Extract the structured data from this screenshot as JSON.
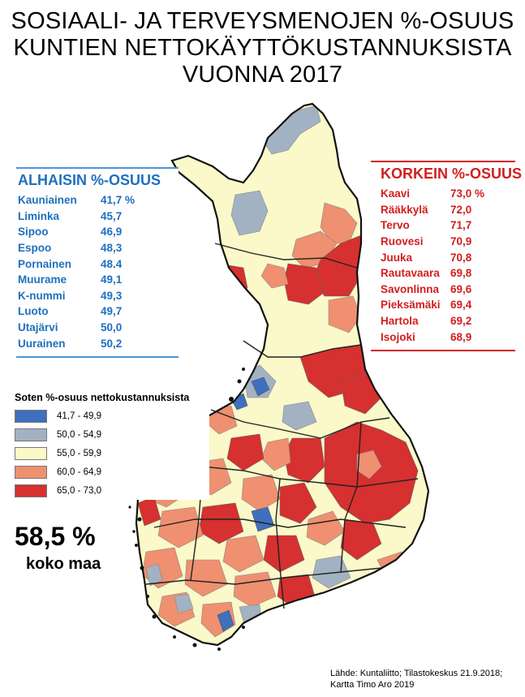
{
  "title": {
    "line1": "SOSIAALI- JA TERVEYSMENOJEN %-OSUUS",
    "line2": "KUNTIEN NETTOKÄYTTÖKUSTANNUKSISTA",
    "line3": "VUONNA 2017"
  },
  "lowest": {
    "heading": "ALHAISIN %-OSUUS",
    "color": "#1f6fbf",
    "items": [
      {
        "name": "Kauniainen",
        "value": "41,7 %"
      },
      {
        "name": "Liminka",
        "value": "45,7"
      },
      {
        "name": "Sipoo",
        "value": "46,9"
      },
      {
        "name": "Espoo",
        "value": "48,3"
      },
      {
        "name": "Pornainen",
        "value": "48.4"
      },
      {
        "name": "Muurame",
        "value": "49,1"
      },
      {
        "name": "K-nummi",
        "value": "49,3"
      },
      {
        "name": "Luoto",
        "value": "49,7"
      },
      {
        "name": "Utajärvi",
        "value": "50,0"
      },
      {
        "name": "Uurainen",
        "value": "50,2"
      }
    ]
  },
  "highest": {
    "heading": "KORKEIN %-OSUUS",
    "color": "#d21e1e",
    "items": [
      {
        "name": "Kaavi",
        "value": "73,0 %"
      },
      {
        "name": "Rääkkylä",
        "value": "72,0"
      },
      {
        "name": "Tervo",
        "value": "71,7"
      },
      {
        "name": "Ruovesi",
        "value": "70,9"
      },
      {
        "name": "Juuka",
        "value": "70,8"
      },
      {
        "name": "Rautavaara",
        "value": "69,8"
      },
      {
        "name": "Savonlinna",
        "value": "69,6"
      },
      {
        "name": "Pieksämäki",
        "value": "69,4"
      },
      {
        "name": "Hartola",
        "value": "69,2"
      },
      {
        "name": "Isojoki",
        "value": "68,9"
      }
    ]
  },
  "legend": {
    "title": "Soten %-osuus nettokustannuksista",
    "classes": [
      {
        "label": "41,7 - 49,9",
        "color": "#3f6fbf"
      },
      {
        "label": "50,0 - 54,9",
        "color": "#a3b2c2"
      },
      {
        "label": "55,0 - 59,9",
        "color": "#fbf8c9"
      },
      {
        "label": "60,0 - 64,9",
        "color": "#ef9070"
      },
      {
        "label": "65,0 - 73,0",
        "color": "#d63030"
      }
    ]
  },
  "national": {
    "value": "58,5 %",
    "label": "koko maa"
  },
  "source": {
    "line1": "Lähde: Kuntaliitto; Tilastokeskus 21.9.2018;",
    "line2": "Kartta Timo Aro 2019"
  }
}
